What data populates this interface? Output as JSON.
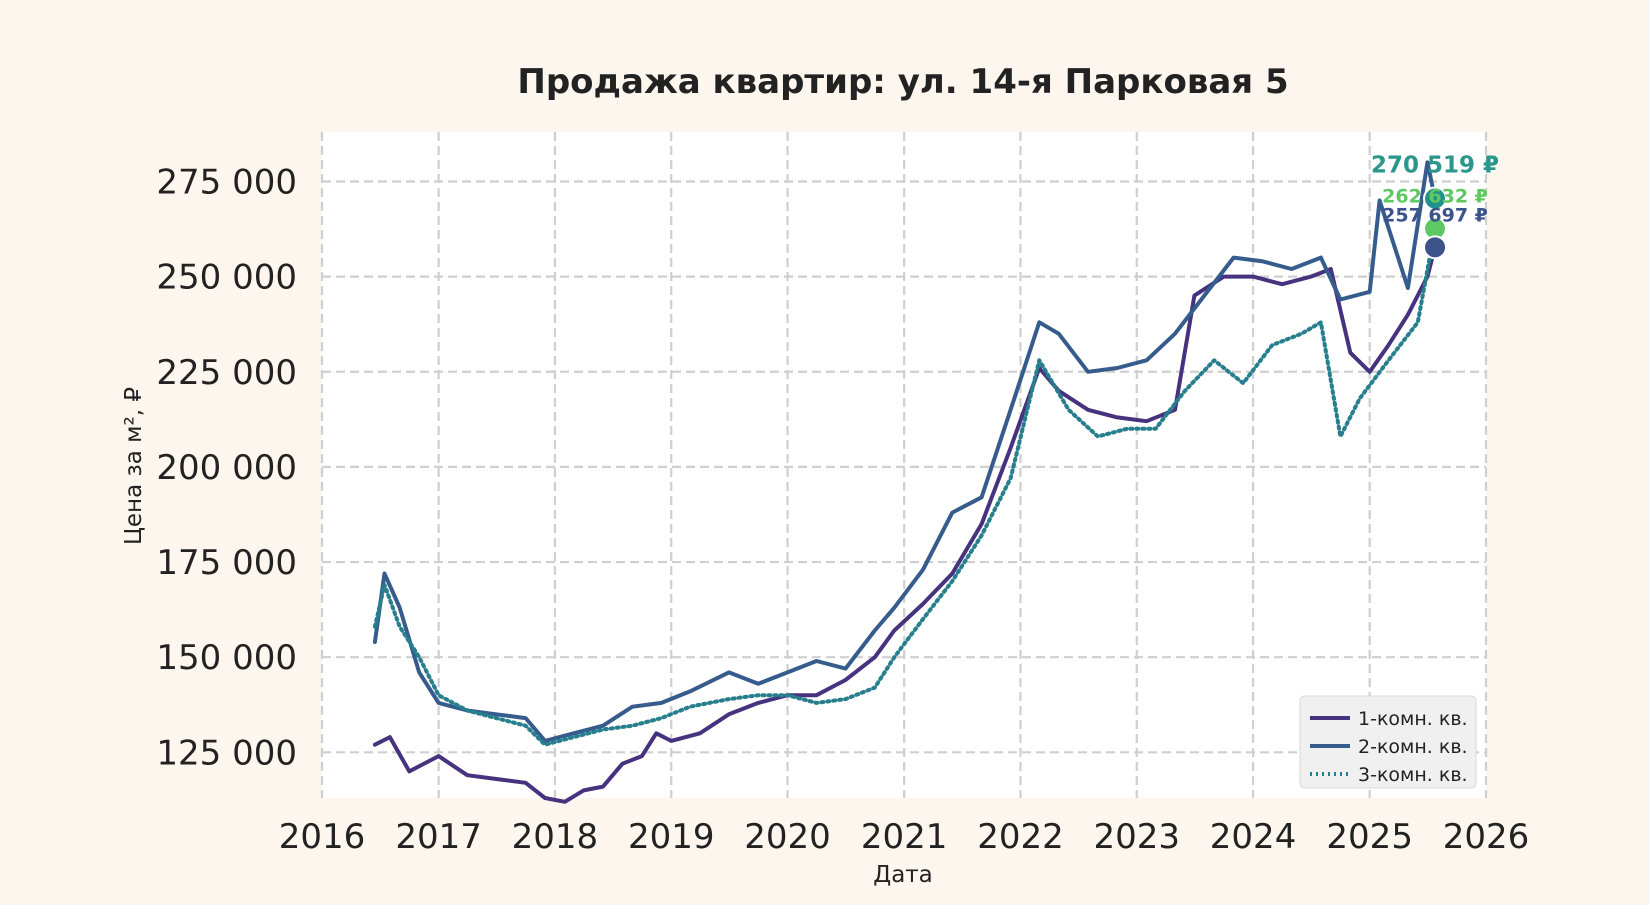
{
  "chart_data": {
    "type": "line",
    "title": "Продажа квартир: ул. 14-я Парковая 5",
    "xlabel": "Дата",
    "ylabel": "Цена за м², ₽",
    "xlim": [
      "2016-01-01",
      "2026-01-01"
    ],
    "ylim": [
      113000,
      288000
    ],
    "x_ticks": [
      "2016",
      "2017",
      "2018",
      "2019",
      "2020",
      "2021",
      "2022",
      "2023",
      "2024",
      "2025",
      "2026"
    ],
    "y_ticks": [
      125000,
      150000,
      175000,
      200000,
      225000,
      250000,
      275000
    ],
    "y_tick_labels": [
      "125 000",
      "150 000",
      "175 000",
      "200 000",
      "225 000",
      "250 000",
      "275 000"
    ],
    "grid": true,
    "grid_style": "dashed",
    "legend_position": "bottom-right",
    "series": [
      {
        "name": "1-комн. кв.",
        "color": "#46327e",
        "line_style": "solid",
        "points": [
          [
            "2016-06-15",
            127000
          ],
          [
            "2016-08-01",
            129000
          ],
          [
            "2016-10-01",
            120000
          ],
          [
            "2017-01-01",
            124000
          ],
          [
            "2017-04-01",
            119000
          ],
          [
            "2017-07-01",
            118000
          ],
          [
            "2017-10-01",
            117000
          ],
          [
            "2017-12-01",
            113000
          ],
          [
            "2018-02-01",
            112000
          ],
          [
            "2018-04-01",
            115000
          ],
          [
            "2018-06-01",
            116000
          ],
          [
            "2018-08-01",
            122000
          ],
          [
            "2018-10-01",
            124000
          ],
          [
            "2018-11-15",
            130000
          ],
          [
            "2019-01-01",
            128000
          ],
          [
            "2019-04-01",
            130000
          ],
          [
            "2019-07-01",
            135000
          ],
          [
            "2019-10-01",
            138000
          ],
          [
            "2020-01-01",
            140000
          ],
          [
            "2020-04-01",
            140000
          ],
          [
            "2020-07-01",
            144000
          ],
          [
            "2020-10-01",
            150000
          ],
          [
            "2020-12-01",
            157000
          ],
          [
            "2021-03-01",
            164000
          ],
          [
            "2021-06-01",
            172000
          ],
          [
            "2021-09-01",
            185000
          ],
          [
            "2021-12-01",
            205000
          ],
          [
            "2022-03-01",
            226000
          ],
          [
            "2022-05-01",
            220000
          ],
          [
            "2022-08-01",
            215000
          ],
          [
            "2022-11-01",
            213000
          ],
          [
            "2023-02-01",
            212000
          ],
          [
            "2023-05-01",
            215000
          ],
          [
            "2023-07-01",
            245000
          ],
          [
            "2023-10-01",
            250000
          ],
          [
            "2024-01-01",
            250000
          ],
          [
            "2024-04-01",
            248000
          ],
          [
            "2024-07-01",
            250000
          ],
          [
            "2024-09-01",
            252000
          ],
          [
            "2024-11-01",
            230000
          ],
          [
            "2025-01-01",
            225000
          ],
          [
            "2025-03-01",
            232000
          ],
          [
            "2025-05-01",
            240000
          ],
          [
            "2025-07-01",
            250000
          ],
          [
            "2025-07-25",
            257697
          ]
        ]
      },
      {
        "name": "2-комн. кв.",
        "color": "#365c8d",
        "line_style": "solid",
        "points": [
          [
            "2016-06-15",
            154000
          ],
          [
            "2016-07-15",
            172000
          ],
          [
            "2016-09-01",
            163000
          ],
          [
            "2016-11-01",
            146000
          ],
          [
            "2017-01-01",
            138000
          ],
          [
            "2017-04-01",
            136000
          ],
          [
            "2017-07-01",
            135000
          ],
          [
            "2017-10-01",
            134000
          ],
          [
            "2017-12-01",
            128000
          ],
          [
            "2018-03-01",
            130000
          ],
          [
            "2018-06-01",
            132000
          ],
          [
            "2018-09-01",
            137000
          ],
          [
            "2018-12-01",
            138000
          ],
          [
            "2019-03-01",
            141000
          ],
          [
            "2019-07-01",
            146000
          ],
          [
            "2019-10-01",
            143000
          ],
          [
            "2020-01-01",
            146000
          ],
          [
            "2020-04-01",
            149000
          ],
          [
            "2020-07-01",
            147000
          ],
          [
            "2020-10-01",
            157000
          ],
          [
            "2020-12-01",
            163000
          ],
          [
            "2021-03-01",
            173000
          ],
          [
            "2021-06-01",
            188000
          ],
          [
            "2021-09-01",
            192000
          ],
          [
            "2021-12-01",
            215000
          ],
          [
            "2022-03-01",
            238000
          ],
          [
            "2022-05-01",
            235000
          ],
          [
            "2022-08-01",
            225000
          ],
          [
            "2022-11-01",
            226000
          ],
          [
            "2023-02-01",
            228000
          ],
          [
            "2023-05-01",
            235000
          ],
          [
            "2023-08-01",
            245000
          ],
          [
            "2023-11-01",
            255000
          ],
          [
            "2024-02-01",
            254000
          ],
          [
            "2024-05-01",
            252000
          ],
          [
            "2024-08-01",
            255000
          ],
          [
            "2024-10-01",
            244000
          ],
          [
            "2025-01-01",
            246000
          ],
          [
            "2025-02-01",
            270000
          ],
          [
            "2025-05-01",
            247000
          ],
          [
            "2025-07-01",
            280000
          ],
          [
            "2025-07-25",
            270519
          ]
        ]
      },
      {
        "name": "3-комн. кв.",
        "color": "#277f8e",
        "line_style": "dotted",
        "points": [
          [
            "2016-06-15",
            158000
          ],
          [
            "2016-07-15",
            169000
          ],
          [
            "2016-09-01",
            158000
          ],
          [
            "2016-11-01",
            150000
          ],
          [
            "2017-01-01",
            140000
          ],
          [
            "2017-04-01",
            136000
          ],
          [
            "2017-07-01",
            134000
          ],
          [
            "2017-10-01",
            132000
          ],
          [
            "2017-12-01",
            127000
          ],
          [
            "2018-03-01",
            129000
          ],
          [
            "2018-06-01",
            131000
          ],
          [
            "2018-09-01",
            132000
          ],
          [
            "2018-12-01",
            134000
          ],
          [
            "2019-03-01",
            137000
          ],
          [
            "2019-07-01",
            139000
          ],
          [
            "2019-10-01",
            140000
          ],
          [
            "2020-01-01",
            140000
          ],
          [
            "2020-04-01",
            138000
          ],
          [
            "2020-07-01",
            139000
          ],
          [
            "2020-10-01",
            142000
          ],
          [
            "2020-12-01",
            150000
          ],
          [
            "2021-03-01",
            160000
          ],
          [
            "2021-06-01",
            170000
          ],
          [
            "2021-09-01",
            182000
          ],
          [
            "2021-12-01",
            197000
          ],
          [
            "2022-03-01",
            228000
          ],
          [
            "2022-06-01",
            215000
          ],
          [
            "2022-09-01",
            208000
          ],
          [
            "2022-12-01",
            210000
          ],
          [
            "2023-03-01",
            210000
          ],
          [
            "2023-06-01",
            220000
          ],
          [
            "2023-09-01",
            228000
          ],
          [
            "2023-12-01",
            222000
          ],
          [
            "2024-03-01",
            232000
          ],
          [
            "2024-06-01",
            235000
          ],
          [
            "2024-08-01",
            238000
          ],
          [
            "2024-10-01",
            208000
          ],
          [
            "2024-12-01",
            218000
          ],
          [
            "2025-03-01",
            228000
          ],
          [
            "2025-06-01",
            238000
          ],
          [
            "2025-07-25",
            262632
          ]
        ]
      }
    ],
    "end_labels": [
      {
        "series": "2-комн. кв.",
        "text": "270 519 ₽",
        "value": 270519,
        "color": "#2a968c"
      },
      {
        "series": "3-комн. кв.",
        "text": "262 632 ₽",
        "value": 262632,
        "color": "#5ec962"
      },
      {
        "series": "1-комн. кв.",
        "text": "257 697 ₽",
        "value": 257697,
        "color": "#3b528b"
      }
    ],
    "end_markers": [
      {
        "date": "2025-07-25",
        "value": 270519,
        "color": "#21918c"
      },
      {
        "date": "2025-07-25",
        "value": 262632,
        "color": "#5ec962"
      },
      {
        "date": "2025-07-25",
        "value": 257697,
        "color": "#3b528b"
      }
    ]
  }
}
